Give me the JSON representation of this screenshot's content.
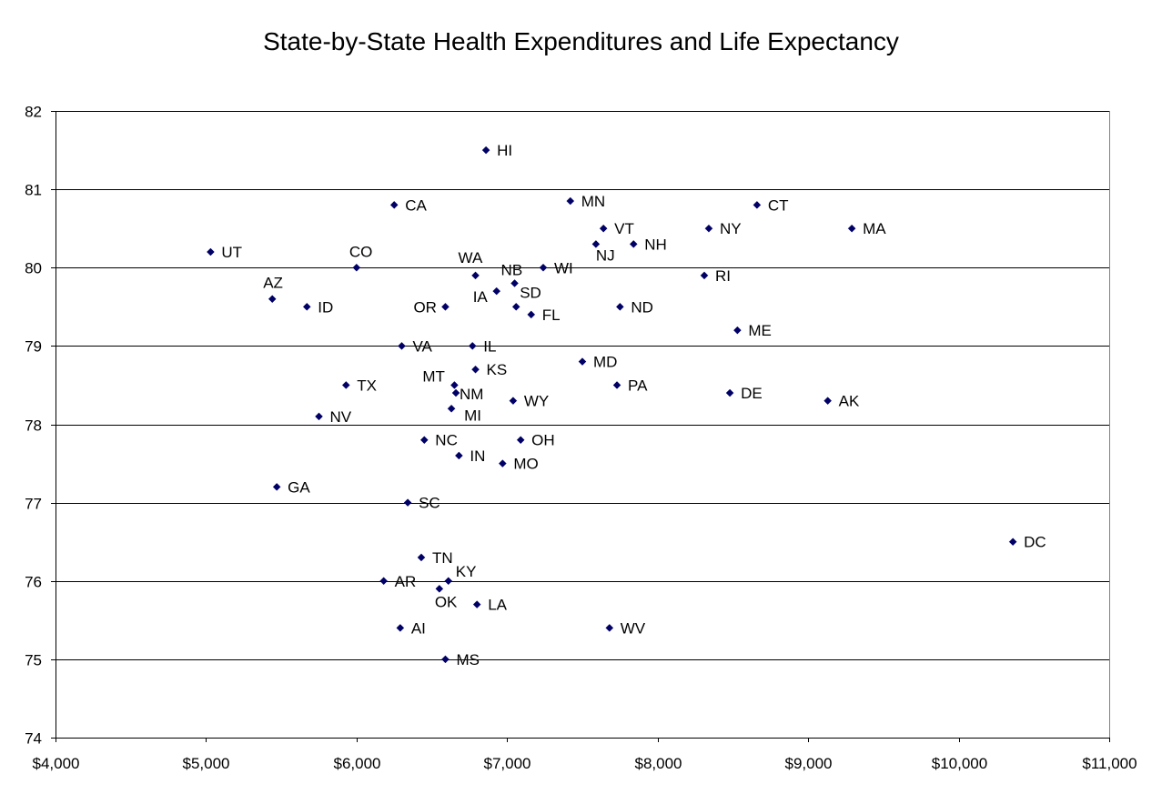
{
  "chart_data": {
    "type": "scatter",
    "title": "State-by-State Health Expenditures and Life Expectancy",
    "xlabel": "",
    "ylabel": "",
    "xlim": [
      4000,
      11000
    ],
    "ylim": [
      74,
      82
    ],
    "x_ticks": [
      4000,
      5000,
      6000,
      7000,
      8000,
      9000,
      10000,
      11000
    ],
    "x_tick_labels": [
      "$4,000",
      "$5,000",
      "$6,000",
      "$7,000",
      "$8,000",
      "$9,000",
      "$10,000",
      "$11,000"
    ],
    "y_ticks": [
      74,
      75,
      76,
      77,
      78,
      79,
      80,
      81,
      82
    ],
    "y_tick_labels": [
      "74",
      "75",
      "76",
      "77",
      "78",
      "79",
      "80",
      "81",
      "82"
    ],
    "grid": "horizontal",
    "marker_color": "#000066",
    "points": [
      {
        "label": "HI",
        "x": 6860,
        "y": 81.5
      },
      {
        "label": "CA",
        "x": 6250,
        "y": 80.8
      },
      {
        "label": "MN",
        "x": 7420,
        "y": 80.85
      },
      {
        "label": "CT",
        "x": 8660,
        "y": 80.8
      },
      {
        "label": "VT",
        "x": 7640,
        "y": 80.5
      },
      {
        "label": "NY",
        "x": 8340,
        "y": 80.5
      },
      {
        "label": "MA",
        "x": 9290,
        "y": 80.5
      },
      {
        "label": "NJ",
        "x": 7590,
        "y": 80.3
      },
      {
        "label": "NH",
        "x": 7840,
        "y": 80.3
      },
      {
        "label": "UT",
        "x": 5030,
        "y": 80.2
      },
      {
        "label": "CO",
        "x": 6000,
        "y": 80.0
      },
      {
        "label": "WA",
        "x": 6790,
        "y": 79.9
      },
      {
        "label": "NB",
        "x": 7050,
        "y": 79.8
      },
      {
        "label": "WI",
        "x": 7240,
        "y": 80.0
      },
      {
        "label": "RI",
        "x": 8310,
        "y": 79.9
      },
      {
        "label": "IA",
        "x": 6930,
        "y": 79.7
      },
      {
        "label": "SD",
        "x": 7060,
        "y": 79.5
      },
      {
        "label": "AZ",
        "x": 5440,
        "y": 79.6
      },
      {
        "label": "ID",
        "x": 5670,
        "y": 79.5
      },
      {
        "label": "OR",
        "x": 6590,
        "y": 79.5
      },
      {
        "label": "FL",
        "x": 7160,
        "y": 79.4
      },
      {
        "label": "ND",
        "x": 7750,
        "y": 79.5
      },
      {
        "label": "ME",
        "x": 8530,
        "y": 79.2
      },
      {
        "label": "VA",
        "x": 6300,
        "y": 79.0
      },
      {
        "label": "IL",
        "x": 6770,
        "y": 79.0
      },
      {
        "label": "MD",
        "x": 7500,
        "y": 78.8
      },
      {
        "label": "KS",
        "x": 6790,
        "y": 78.7
      },
      {
        "label": "TX",
        "x": 5930,
        "y": 78.5
      },
      {
        "label": "MT",
        "x": 6650,
        "y": 78.5
      },
      {
        "label": "PA",
        "x": 7730,
        "y": 78.5
      },
      {
        "label": "NM",
        "x": 6660,
        "y": 78.4
      },
      {
        "label": "DE",
        "x": 8480,
        "y": 78.4
      },
      {
        "label": "WY",
        "x": 7040,
        "y": 78.3
      },
      {
        "label": "AK",
        "x": 9130,
        "y": 78.3
      },
      {
        "label": "MI",
        "x": 6630,
        "y": 78.2
      },
      {
        "label": "NV",
        "x": 5750,
        "y": 78.1
      },
      {
        "label": "NC",
        "x": 6450,
        "y": 77.8
      },
      {
        "label": "OH",
        "x": 7090,
        "y": 77.8
      },
      {
        "label": "IN",
        "x": 6680,
        "y": 77.6
      },
      {
        "label": "MO",
        "x": 6970,
        "y": 77.5
      },
      {
        "label": "GA",
        "x": 5470,
        "y": 77.2
      },
      {
        "label": "SC",
        "x": 6340,
        "y": 77.0
      },
      {
        "label": "DC",
        "x": 10360,
        "y": 76.5
      },
      {
        "label": "TN",
        "x": 6430,
        "y": 76.3
      },
      {
        "label": "AR",
        "x": 6180,
        "y": 76.0
      },
      {
        "label": "KY",
        "x": 6610,
        "y": 76.0
      },
      {
        "label": "OK",
        "x": 6550,
        "y": 75.9
      },
      {
        "label": "LA",
        "x": 6800,
        "y": 75.7
      },
      {
        "label": "AI",
        "x": 6290,
        "y": 75.4
      },
      {
        "label": "WV",
        "x": 7680,
        "y": 75.4
      },
      {
        "label": "MS",
        "x": 6590,
        "y": 75.0
      }
    ]
  }
}
